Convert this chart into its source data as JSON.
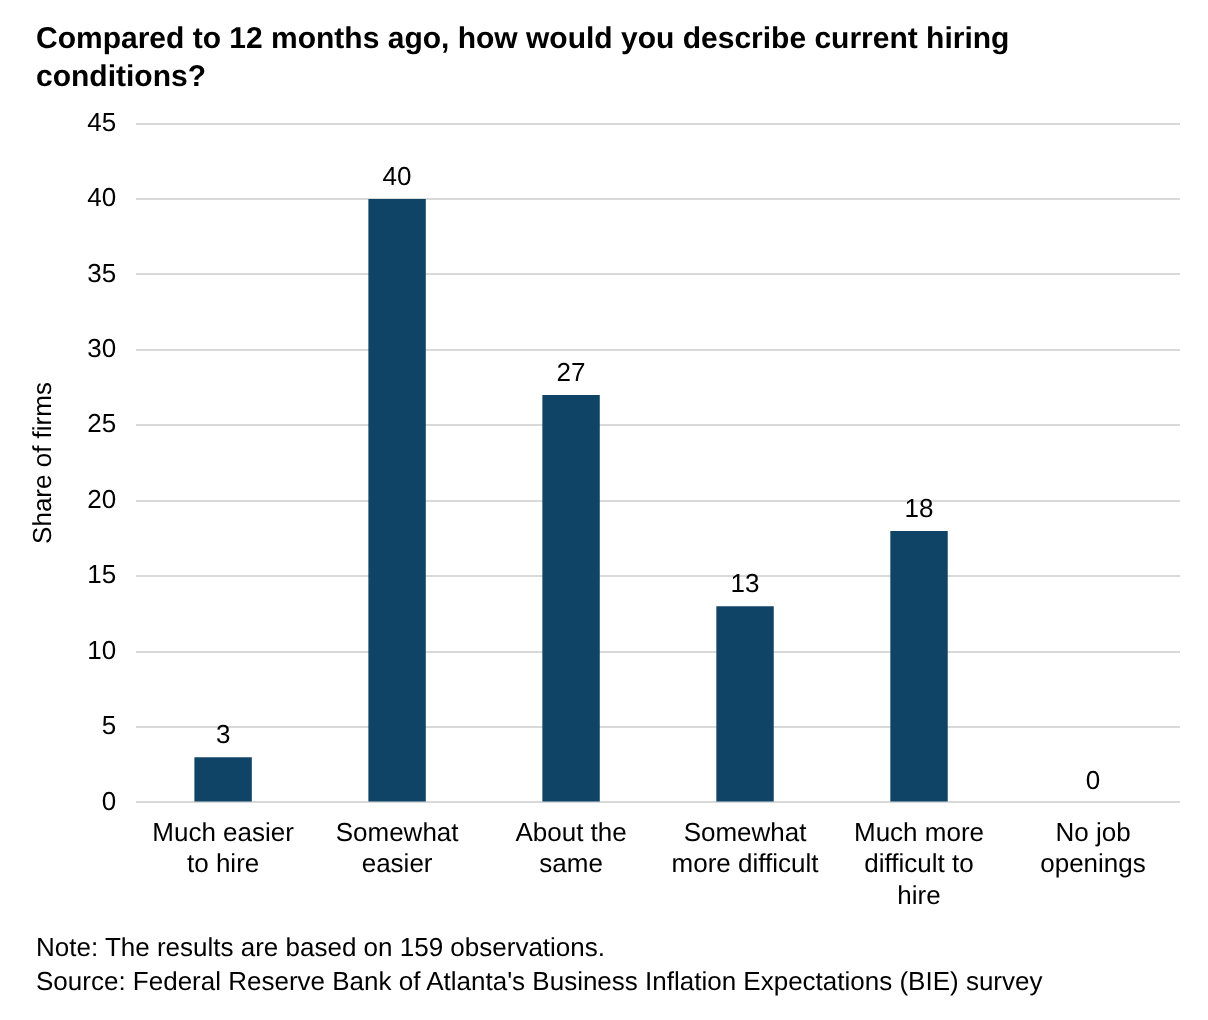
{
  "chart_data": {
    "type": "bar",
    "title": "Compared to 12 months ago, how would you describe current hiring conditions?",
    "ylabel": "Share of firms",
    "categories": [
      "Much easier to hire",
      "Somewhat easier",
      "About the same",
      "Somewhat more difficult",
      "Much more difficult to hire",
      "No job openings"
    ],
    "values": [
      3,
      40,
      27,
      13,
      18,
      0
    ],
    "color": "#0f4466",
    "data_labels": true,
    "ylim": [
      0,
      45
    ],
    "yticks": [
      0,
      5,
      10,
      15,
      20,
      25,
      30,
      35,
      40,
      45
    ],
    "grid": "y",
    "legend": false,
    "annotations": [
      "Note: The results are based on 159 observations.",
      "Source: Federal Reserve Bank of Atlanta's Business Inflation Expectations (BIE) survey"
    ]
  }
}
